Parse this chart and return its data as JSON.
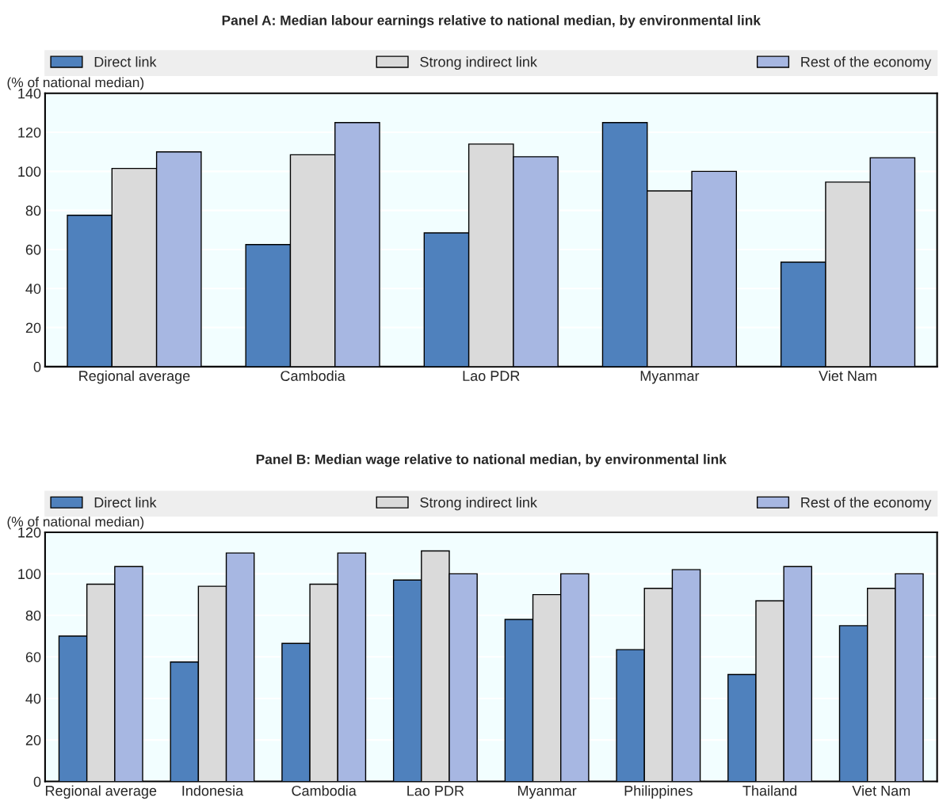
{
  "chart_data": [
    {
      "type": "bar",
      "title": "Panel A: Median labour earnings relative to national median, by environmental link",
      "ylabel": "(% of national median)",
      "categories": [
        "Regional average",
        "Cambodia",
        "Lao PDR",
        "Myanmar",
        "Viet Nam"
      ],
      "series": [
        {
          "name": "Direct link",
          "color": "#4f81bd",
          "values": [
            77.5,
            62.5,
            68.5,
            125,
            53.5
          ]
        },
        {
          "name": "Strong indirect link",
          "color": "#dadada",
          "values": [
            101.5,
            108.5,
            114,
            90,
            94.5
          ]
        },
        {
          "name": "Rest of the economy",
          "color": "#a7b7e2",
          "values": [
            110,
            125,
            107.5,
            100,
            107
          ]
        }
      ],
      "ylim": [
        0,
        140
      ],
      "yticks": [
        0,
        20,
        40,
        60,
        80,
        100,
        120,
        140
      ],
      "grid": "y",
      "legend": "top"
    },
    {
      "type": "bar",
      "title": "Panel B: Median wage relative to national median, by environmental link",
      "ylabel": "(% of national median)",
      "categories": [
        "Regional average",
        "Indonesia",
        "Cambodia",
        "Lao PDR",
        "Myanmar",
        "Philippines",
        "Thailand",
        "Viet Nam"
      ],
      "series": [
        {
          "name": "Direct link",
          "color": "#4f81bd",
          "values": [
            70,
            57.5,
            66.5,
            97,
            78,
            63.5,
            51.5,
            75
          ]
        },
        {
          "name": "Strong indirect link",
          "color": "#dadada",
          "values": [
            95,
            94,
            95,
            111,
            90,
            93,
            87,
            93
          ]
        },
        {
          "name": "Rest of the economy",
          "color": "#a7b7e2",
          "values": [
            103.5,
            110,
            110,
            100,
            100,
            102,
            103.5,
            100
          ]
        }
      ],
      "ylim": [
        0,
        120
      ],
      "yticks": [
        0,
        20,
        40,
        60,
        80,
        100,
        120
      ],
      "grid": "y",
      "legend": "top"
    }
  ]
}
